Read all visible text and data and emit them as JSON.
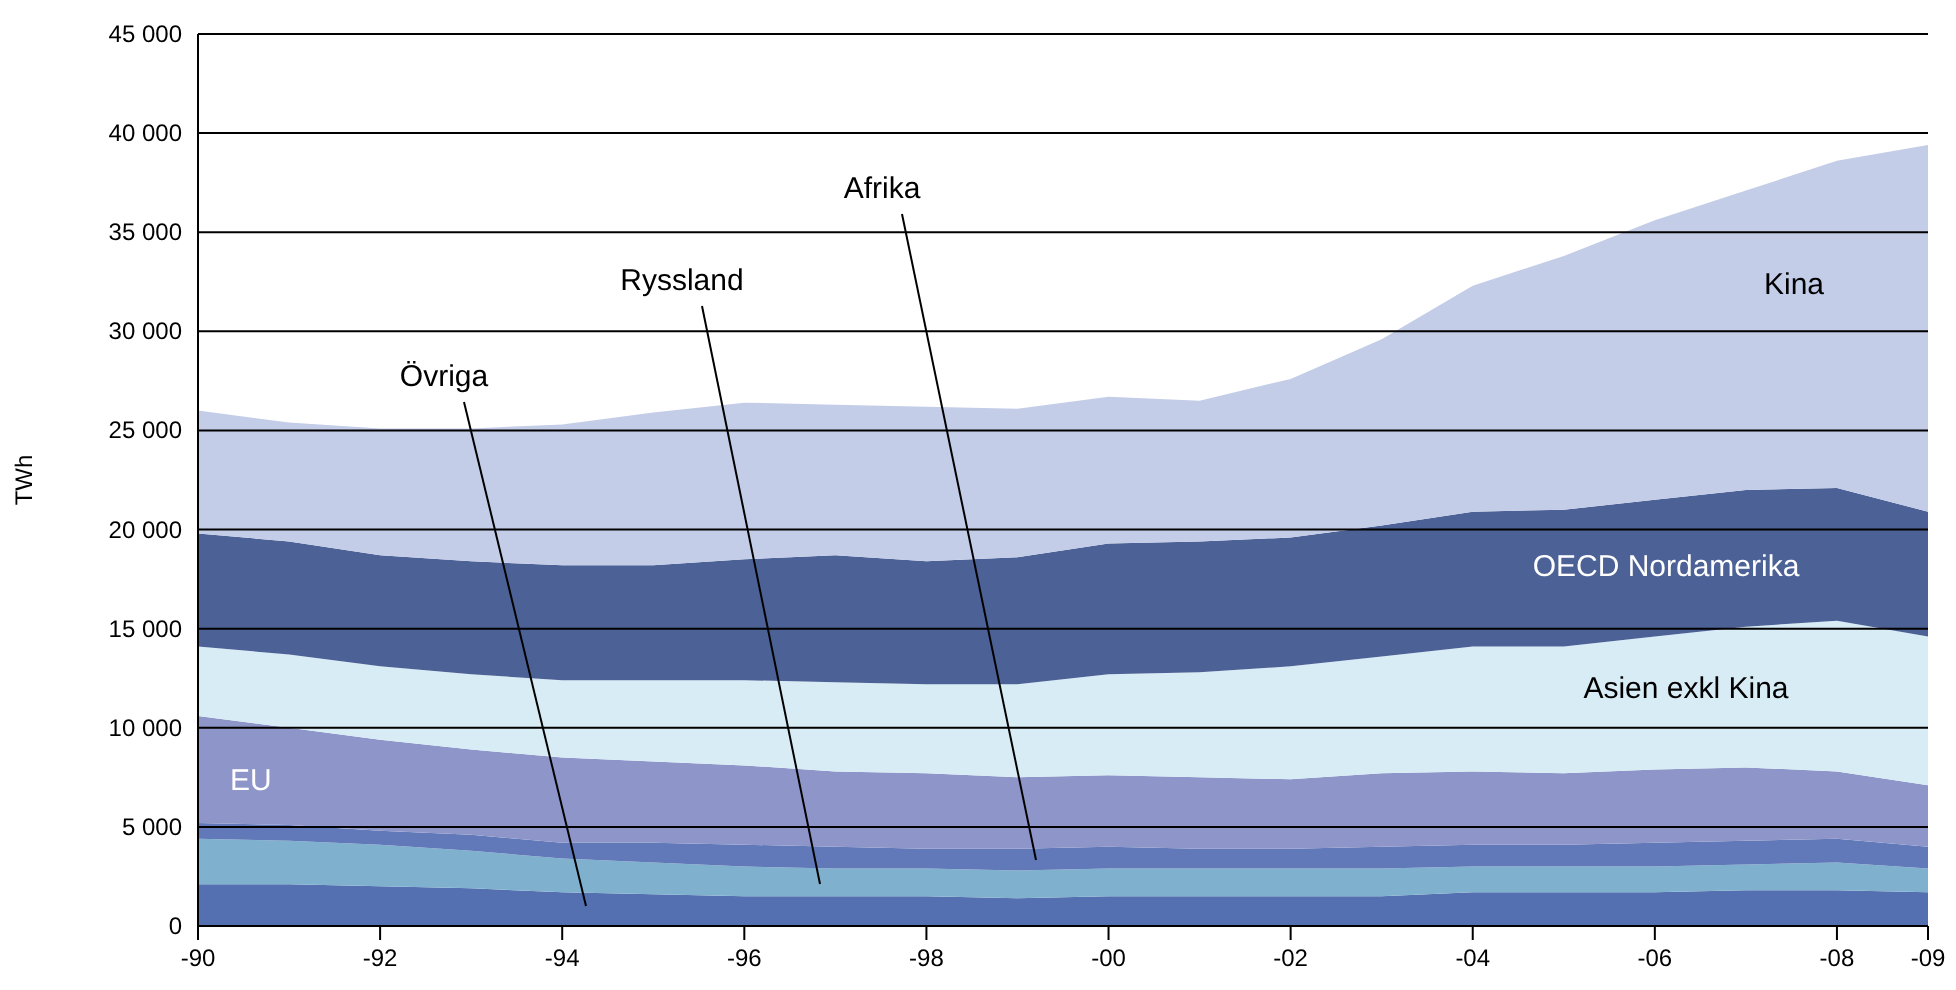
{
  "chart_data": {
    "type": "area",
    "stacked": true,
    "ylabel": "TWh",
    "categories": [
      "-90",
      null,
      "-92",
      null,
      "-94",
      null,
      "-96",
      null,
      "-98",
      null,
      "-00",
      null,
      "-02",
      null,
      "-04",
      null,
      "-06",
      null,
      "-08",
      "-09"
    ],
    "ylim": [
      0,
      45000
    ],
    "yticks": [
      0,
      {
        "value": 5000,
        "label": "5 000"
      },
      {
        "value": 10000,
        "label": "10 000"
      },
      {
        "value": 15000,
        "label": "15 000"
      },
      {
        "value": 20000,
        "label": "20 000"
      },
      {
        "value": 25000,
        "label": "25 000"
      },
      {
        "value": 30000,
        "label": "30 000"
      },
      {
        "value": 35000,
        "label": "35 000"
      },
      {
        "value": 40000,
        "label": "40 000"
      },
      {
        "value": 45000,
        "label": "45 000"
      }
    ],
    "grid": "y",
    "series": [
      {
        "name": "Övriga",
        "color": "#5470b0",
        "values": [
          2100,
          2100,
          2000,
          1900,
          1700,
          1600,
          1500,
          1500,
          1500,
          1400,
          1500,
          1500,
          1500,
          1500,
          1700,
          1700,
          1700,
          1800,
          1800,
          1700
        ]
      },
      {
        "name": "Ryssland",
        "color": "#7fb1cf",
        "values": [
          2300,
          2200,
          2100,
          1900,
          1700,
          1600,
          1500,
          1400,
          1400,
          1400,
          1400,
          1400,
          1400,
          1400,
          1300,
          1300,
          1300,
          1300,
          1400,
          1200
        ]
      },
      {
        "name": "Afrika",
        "color": "#6179b8",
        "values": [
          800,
          800,
          700,
          800,
          800,
          1000,
          1100,
          1100,
          1000,
          1100,
          1100,
          1000,
          1000,
          1100,
          1100,
          1100,
          1200,
          1200,
          1200,
          1100
        ]
      },
      {
        "name": "EU",
        "color": "#8e95c9",
        "values": [
          5400,
          4900,
          4600,
          4300,
          4300,
          4100,
          4000,
          3800,
          3800,
          3600,
          3600,
          3600,
          3500,
          3700,
          3700,
          3600,
          3700,
          3700,
          3400,
          3100
        ]
      },
      {
        "name": "Asien exkl Kina",
        "color": "#d8ecf6",
        "values": [
          3500,
          3700,
          3700,
          3800,
          3900,
          4100,
          4300,
          4500,
          4500,
          4700,
          5100,
          5300,
          5700,
          5900,
          6300,
          6400,
          6700,
          7100,
          7600,
          7500
        ]
      },
      {
        "name": "OECD Nordamerika",
        "color": "#4c6196",
        "values": [
          5700,
          5700,
          5600,
          5700,
          5800,
          5800,
          6100,
          6400,
          6200,
          6400,
          6600,
          6600,
          6500,
          6600,
          6800,
          6900,
          6900,
          6900,
          6700,
          6300
        ]
      },
      {
        "name": "Kina",
        "color": "#c3cde8",
        "values": [
          6200,
          6000,
          6400,
          6700,
          7100,
          7700,
          7900,
          7600,
          7800,
          7500,
          7400,
          7100,
          8000,
          9400,
          11400,
          12800,
          14100,
          15100,
          16500,
          18500
        ]
      }
    ]
  }
}
